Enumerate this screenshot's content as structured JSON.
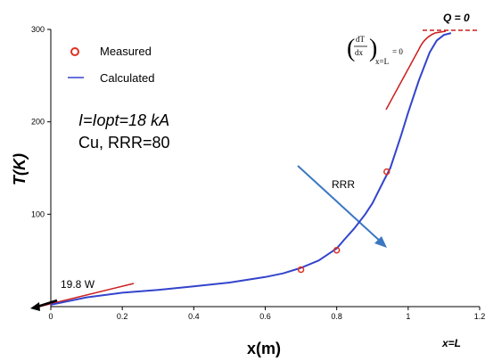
{
  "chart_data": {
    "type": "line",
    "title": "",
    "xlabel": "x(m)",
    "ylabel": "T(K)",
    "xlim": [
      0,
      1.2
    ],
    "ylim": [
      0,
      300
    ],
    "x_ticks": [
      "0",
      "0.2",
      "0.4",
      "0.6",
      "0.8",
      "1",
      "1.2"
    ],
    "y_ticks": [
      "100",
      "200",
      "300"
    ],
    "x_tick_values": [
      0,
      0.2,
      0.4,
      0.6,
      0.8,
      1.0,
      1.2
    ],
    "y_tick_values": [
      100,
      200,
      300
    ],
    "legend_position": "top-left",
    "series": [
      {
        "name": "Calculated",
        "kind": "line",
        "color": "#3344cc",
        "x": [
          0,
          0.05,
          0.1,
          0.2,
          0.3,
          0.4,
          0.5,
          0.6,
          0.65,
          0.7,
          0.75,
          0.8,
          0.82,
          0.85,
          0.88,
          0.9,
          0.93,
          0.95,
          0.98,
          1.0,
          1.03,
          1.06,
          1.08,
          1.1,
          1.12
        ],
        "y": [
          2,
          6,
          10,
          15,
          18,
          22,
          26,
          32,
          36,
          42,
          50,
          63,
          72,
          85,
          100,
          112,
          135,
          150,
          185,
          210,
          245,
          275,
          288,
          294,
          296
        ]
      },
      {
        "name": "Measured",
        "kind": "scatter",
        "color": "#e03020",
        "x": [
          0.7,
          0.8,
          0.94
        ],
        "y": [
          40,
          61,
          146
        ]
      }
    ],
    "annotations": {
      "q_label": "Q = 0",
      "xl_label": "x=L",
      "current": "I=Iopt=18 kA",
      "material": "Cu, RRR=80",
      "rrr_label": "RRR",
      "power": "19.8 W",
      "bc_open": "(",
      "bc_num": "dT",
      "bc_den": "dx",
      "bc_close": ")",
      "bc_sub": "x=L",
      "bc_eq": "= 0"
    },
    "colors": {
      "line": "#3344cc",
      "measured": "#e03020",
      "annotation_red": "#cc1f1f",
      "arrow_blue": "#3b78c2",
      "axis": "#000000"
    }
  }
}
